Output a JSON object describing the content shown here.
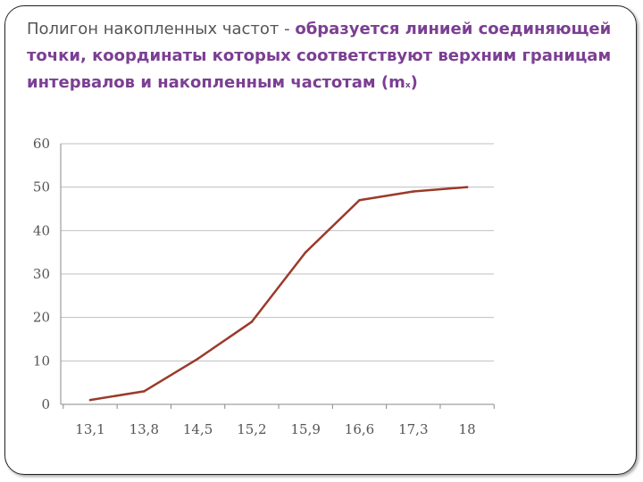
{
  "slide": {
    "title_plain": "Полигон накопленных частот - ",
    "title_highlight": "образуется линией соединяющей точки, координаты которых соответствуют верхним границам интервалов и накопленным частотам (m",
    "title_subscript": "x",
    "title_close": ")"
  },
  "chart_data": {
    "type": "line",
    "categories": [
      "13,1",
      "13,8",
      "14,5",
      "15,2",
      "15,9",
      "16,6",
      "17,3",
      "18"
    ],
    "series": [
      {
        "values": [
          1,
          3,
          10.5,
          19,
          35,
          47,
          49,
          50
        ]
      }
    ],
    "yticks": [
      "0",
      "10",
      "20",
      "30",
      "40",
      "50",
      "60"
    ],
    "ylim": [
      0,
      60
    ],
    "grid": true,
    "legend": "none",
    "colors": {
      "line": "#9b3a2a",
      "grid": "#bfbfbf",
      "axis": "#888888"
    }
  }
}
